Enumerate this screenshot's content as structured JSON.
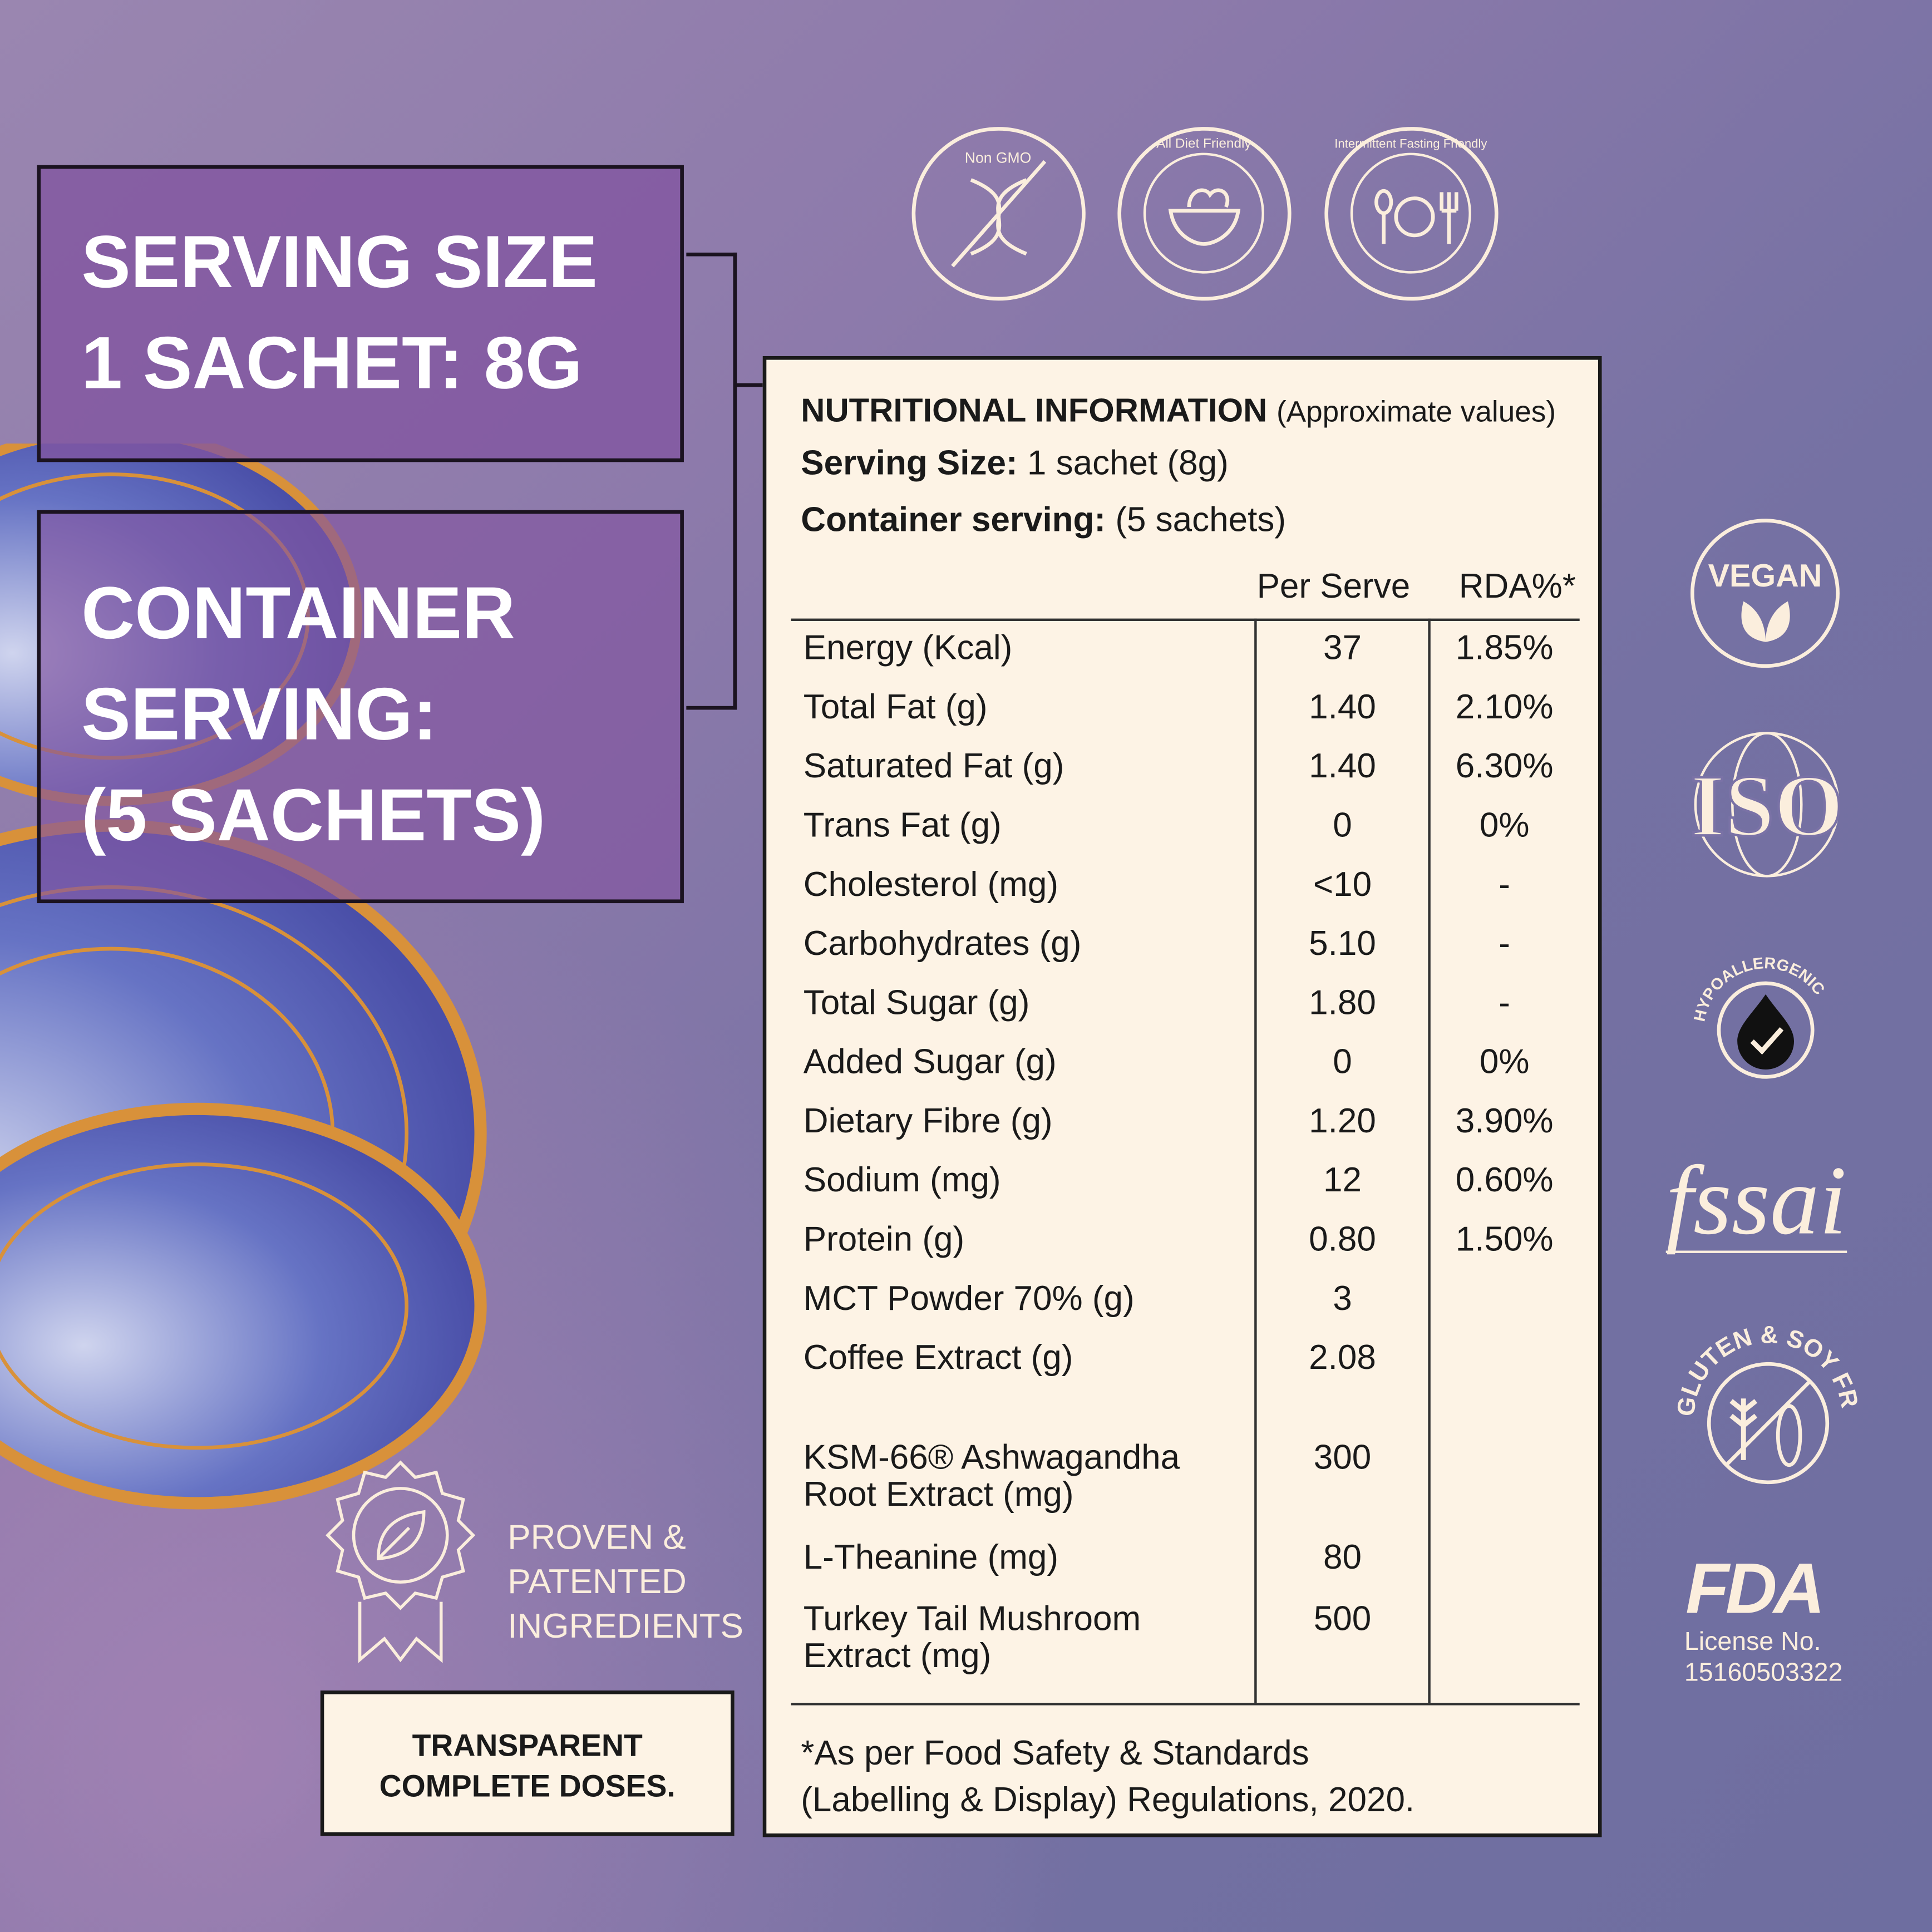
{
  "serving_box": {
    "line1": "SERVING SIZE",
    "line2": "1 SACHET: 8G"
  },
  "container_box": {
    "line1": "CONTAINER",
    "line2": "SERVING:",
    "line3": "(5 SACHETS)"
  },
  "badges_top": [
    {
      "icon": "dna-crossed-icon",
      "text": "Non GMO"
    },
    {
      "icon": "salad-bowl-icon",
      "text": "All Diet Friendly"
    },
    {
      "icon": "spoon-clock-fork-icon",
      "text": "Intermittent Fasting Friendly"
    }
  ],
  "nutrition": {
    "title": "NUTRITIONAL INFORMATION",
    "title_note": "(Approximate values)",
    "serving_label": "Serving Size:",
    "serving_value": "1 sachet (8g)",
    "container_label": "Container serving:",
    "container_value": "(5 sachets)",
    "col_per_serve": "Per Serve",
    "col_rda": "RDA%*",
    "rows": [
      {
        "name": "Energy (Kcal)",
        "per": "37",
        "rda": "1.85%"
      },
      {
        "name": "Total Fat (g)",
        "per": "1.40",
        "rda": "2.10%"
      },
      {
        "name": "Saturated Fat (g)",
        "per": "1.40",
        "rda": "6.30%"
      },
      {
        "name": "Trans Fat (g)",
        "per": "0",
        "rda": "0%"
      },
      {
        "name": "Cholesterol (mg)",
        "per": "<10",
        "rda": "-"
      },
      {
        "name": "Carbohydrates (g)",
        "per": "5.10",
        "rda": "-"
      },
      {
        "name": "Total Sugar (g)",
        "per": "1.80",
        "rda": "-"
      },
      {
        "name": "Added Sugar (g)",
        "per": "0",
        "rda": "0%"
      },
      {
        "name": "Dietary Fibre (g)",
        "per": "1.20",
        "rda": "3.90%"
      },
      {
        "name": "Sodium (mg)",
        "per": "12",
        "rda": "0.60%"
      },
      {
        "name": "Protein (g)",
        "per": "0.80",
        "rda": "1.50%"
      },
      {
        "name": "MCT Powder 70% (g)",
        "per": "3",
        "rda": ""
      },
      {
        "name": "Coffee Extract (g)",
        "per": "2.08",
        "rda": ""
      },
      {
        "name": "KSM-66® Ashwagandha Root Extract (mg)",
        "per": "300",
        "rda": ""
      },
      {
        "name": "L-Theanine (mg)",
        "per": "80",
        "rda": ""
      },
      {
        "name": "Turkey Tail Mushroom Extract (mg)",
        "per": "500",
        "rda": ""
      }
    ],
    "footnote_line1": "*As per Food Safety & Standards",
    "footnote_line2": "(Labelling & Display) Regulations, 2020."
  },
  "proven": {
    "line1": "PROVEN &",
    "line2": "PATENTED",
    "line3": "INGREDIENTS",
    "icon": "award-leaf-icon"
  },
  "transparent": {
    "line1": "TRANSPARENT",
    "line2": "COMPLETE DOSES."
  },
  "right_badges": {
    "vegan": "VEGAN",
    "iso": "ISO",
    "hypo": "HYPOALLERGENIC",
    "fssai": "fssai",
    "gluten": "GLUTEN & SOY FREE",
    "fda": "FDA",
    "license_label": "License No.",
    "license_number": "15160503322"
  },
  "colors": {
    "cream": "#fdf3e5",
    "box_purple": "#8255a0",
    "ink": "#1a1a1a"
  }
}
